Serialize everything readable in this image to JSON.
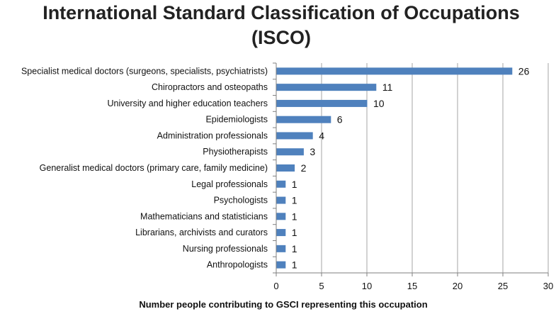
{
  "chart_data": {
    "type": "bar",
    "orientation": "horizontal",
    "title": "International Standard Classification of Occupations (ISCO)",
    "title_lines": [
      "International Standard Classification of Occupations",
      "(ISCO)"
    ],
    "xlabel": "Number people contributing to GSCI representing this occupation",
    "ylabel": "",
    "xlim": [
      0,
      30
    ],
    "xticks": [
      0,
      5,
      10,
      15,
      20,
      25,
      30
    ],
    "grid": "vertical",
    "legend": "none",
    "bar_color": "#4f81bd",
    "categories": [
      "Specialist medical doctors (surgeons, specialists, psychiatrists)",
      "Chiropractors and osteopaths",
      "University and higher education teachers",
      "Epidemiologists",
      "Administration professionals",
      "Physiotherapists",
      "Generalist medical doctors (primary care, family medicine)",
      "Legal professionals",
      "Psychologists",
      "Mathematicians and statisticians",
      "Librarians, archivists and curators",
      "Nursing professionals",
      "Anthropologists"
    ],
    "values": [
      26,
      11,
      10,
      6,
      4,
      3,
      2,
      1,
      1,
      1,
      1,
      1,
      1
    ]
  }
}
